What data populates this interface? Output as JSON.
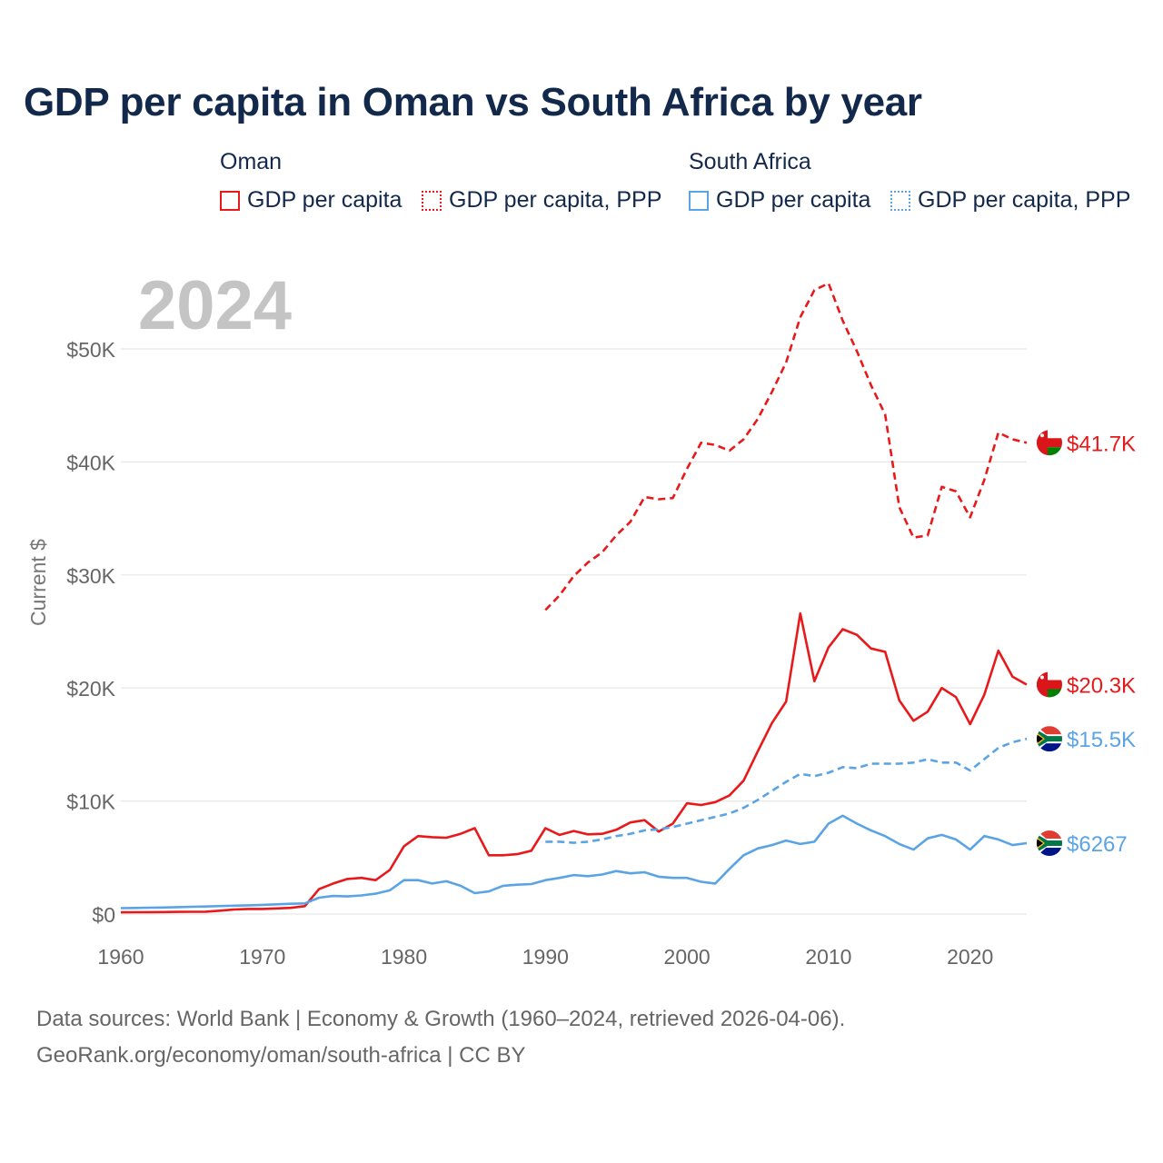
{
  "title": "GDP per capita in Oman vs South Africa by year",
  "legend": {
    "groups": [
      {
        "country": "Oman",
        "items": [
          {
            "label": "GDP per capita",
            "style": "solid",
            "color": "#e8191b"
          },
          {
            "label": "GDP per capita, PPP",
            "style": "dotted",
            "color": "#e8191b"
          }
        ]
      },
      {
        "country": "South Africa",
        "items": [
          {
            "label": "GDP per capita",
            "style": "solid",
            "color": "#5aa4e6"
          },
          {
            "label": "GDP per capita, PPP",
            "style": "dotted",
            "color": "#5aa4e6"
          }
        ]
      }
    ]
  },
  "year_label": "2024",
  "footer": {
    "line1": "Data sources: World Bank | Economy & Growth (1960–2024, retrieved 2026-04-06).",
    "line2": "GeoRank.org/economy/oman/south-africa | CC BY"
  },
  "chart_data": {
    "type": "line",
    "title": "GDP per capita in Oman vs South Africa by year",
    "xlabel": "",
    "ylabel": "Current $",
    "xlim": [
      1960,
      2024
    ],
    "ylim": [
      0,
      55000
    ],
    "x_ticks": [
      {
        "value": 1960,
        "label": "1960"
      },
      {
        "value": 1970,
        "label": "1970"
      },
      {
        "value": 1980,
        "label": "1980"
      },
      {
        "value": 1990,
        "label": "1990"
      },
      {
        "value": 2000,
        "label": "2000"
      },
      {
        "value": 2010,
        "label": "2010"
      },
      {
        "value": 2020,
        "label": "2020"
      }
    ],
    "y_ticks": [
      {
        "value": 0,
        "label": "$0"
      },
      {
        "value": 10000,
        "label": "$10K"
      },
      {
        "value": 20000,
        "label": "$20K"
      },
      {
        "value": 30000,
        "label": "$30K"
      },
      {
        "value": 40000,
        "label": "$40K"
      },
      {
        "value": 50000,
        "label": "$50K"
      }
    ],
    "grid": true,
    "series": [
      {
        "name": "Oman GDP per capita",
        "color": "#e8191b",
        "dashed": false,
        "end_label": "$20.3K",
        "flag": "oman",
        "start_year": 1960,
        "values": [
          150,
          160,
          170,
          180,
          190,
          200,
          210,
          300,
          400,
          450,
          450,
          500,
          550,
          700,
          2200,
          2700,
          3100,
          3200,
          3000,
          3900,
          6000,
          6900,
          6800,
          6750,
          7100,
          7600,
          5200,
          5200,
          5300,
          5600,
          7600,
          7000,
          7350,
          7050,
          7100,
          7450,
          8100,
          8300,
          7300,
          8000,
          9800,
          9650,
          9900,
          10500,
          11800,
          14400,
          16900,
          18800,
          26600,
          20600,
          23600,
          25200,
          24700,
          23500,
          23200,
          18900,
          17100,
          17900,
          20000,
          19200,
          16800,
          19400,
          23300,
          21000,
          20300
        ]
      },
      {
        "name": "Oman GDP per capita, PPP",
        "color": "#e8191b",
        "dashed": true,
        "end_label": "$41.7K",
        "flag": "oman",
        "start_year": 1990,
        "values": [
          26900,
          28200,
          29900,
          31100,
          32000,
          33500,
          34700,
          36900,
          36700,
          36800,
          39400,
          41700,
          41500,
          41000,
          42000,
          43800,
          46200,
          48800,
          52800,
          55200,
          55800,
          52500,
          49800,
          46800,
          44200,
          36000,
          33300,
          33500,
          37800,
          37400,
          35100,
          38400,
          42600,
          42000,
          41700
        ]
      },
      {
        "name": "South Africa GDP per capita",
        "color": "#5aa4e6",
        "dashed": false,
        "end_label": "$6267",
        "flag": "south-africa",
        "start_year": 1960,
        "values": [
          520,
          540,
          560,
          580,
          610,
          640,
          670,
          710,
          740,
          770,
          810,
          860,
          910,
          940,
          1450,
          1600,
          1560,
          1650,
          1800,
          2100,
          3000,
          3000,
          2700,
          2900,
          2500,
          1850,
          2000,
          2500,
          2600,
          2650,
          3000,
          3200,
          3450,
          3350,
          3500,
          3800,
          3600,
          3700,
          3300,
          3200,
          3200,
          2850,
          2700,
          4000,
          5200,
          5800,
          6100,
          6500,
          6200,
          6400,
          8000,
          8700,
          8000,
          7400,
          6900,
          6200,
          5700,
          6700,
          7000,
          6600,
          5700,
          6900,
          6600,
          6100,
          6267
        ]
      },
      {
        "name": "South Africa GDP per capita, PPP",
        "color": "#5aa4e6",
        "dashed": true,
        "end_label": "$15.5K",
        "flag": "south-africa",
        "start_year": 1990,
        "values": [
          6400,
          6400,
          6300,
          6400,
          6600,
          6900,
          7100,
          7400,
          7500,
          7700,
          8000,
          8300,
          8600,
          8900,
          9400,
          10100,
          10900,
          11700,
          12400,
          12200,
          12500,
          13000,
          12900,
          13300,
          13300,
          13300,
          13400,
          13700,
          13400,
          13400,
          12700,
          13700,
          14700,
          15200,
          15500
        ]
      }
    ]
  }
}
